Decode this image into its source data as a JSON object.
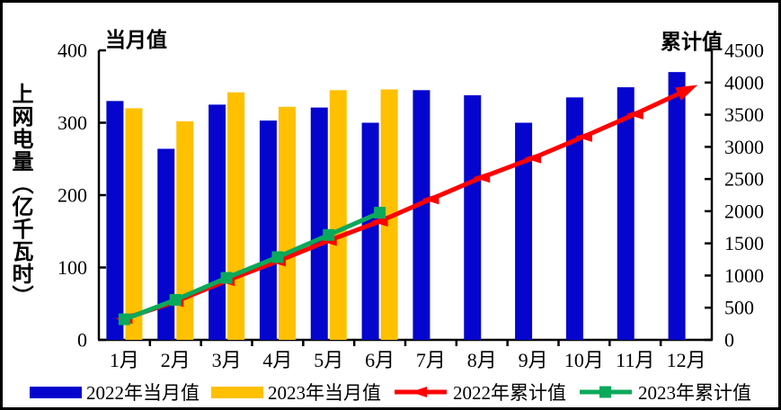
{
  "frame": {
    "background": "#FFFFFF",
    "border_color": "#000000",
    "text_color": "#000000"
  },
  "chart_data": {
    "type": "combo-bar-line",
    "categories": [
      "1月",
      "2月",
      "3月",
      "4月",
      "5月",
      "6月",
      "7月",
      "8月",
      "9月",
      "10月",
      "11月",
      "12月"
    ],
    "left_axis": {
      "header_label": "当月值",
      "title": "上网电量（亿千瓦时）",
      "min": 0,
      "max": 400,
      "step": 100,
      "tick_labels": [
        "0",
        "100",
        "200",
        "300",
        "400"
      ]
    },
    "right_axis": {
      "header_label": "累计值",
      "min": 0,
      "max": 4500,
      "step": 500,
      "tick_labels": [
        "0",
        "500",
        "1000",
        "1500",
        "2000",
        "2500",
        "3000",
        "3500",
        "4000",
        "4500"
      ]
    },
    "series": [
      {
        "name": "2022年当月值",
        "type": "bar",
        "axis": "left",
        "color": "#0505CE",
        "values": [
          330,
          264,
          325,
          303,
          321,
          300,
          345,
          338,
          300,
          335,
          349,
          370
        ]
      },
      {
        "name": "2023年当月值",
        "type": "bar",
        "axis": "left",
        "color": "#FFC000",
        "values": [
          320,
          302,
          342,
          322,
          345,
          346
        ]
      },
      {
        "name": "2022年累计值",
        "type": "line",
        "axis": "right",
        "color": "#FF0000",
        "marker": "arrow",
        "values": [
          330,
          594,
          919,
          1222,
          1543,
          1843,
          2188,
          2526,
          2826,
          3161,
          3510,
          3880
        ]
      },
      {
        "name": "2023年累计值",
        "type": "line",
        "axis": "right",
        "color": "#0AA85B",
        "marker": "square",
        "values": [
          320,
          622,
          964,
          1286,
          1631,
          1977
        ]
      }
    ],
    "legend_position": "bottom",
    "grid": false
  }
}
